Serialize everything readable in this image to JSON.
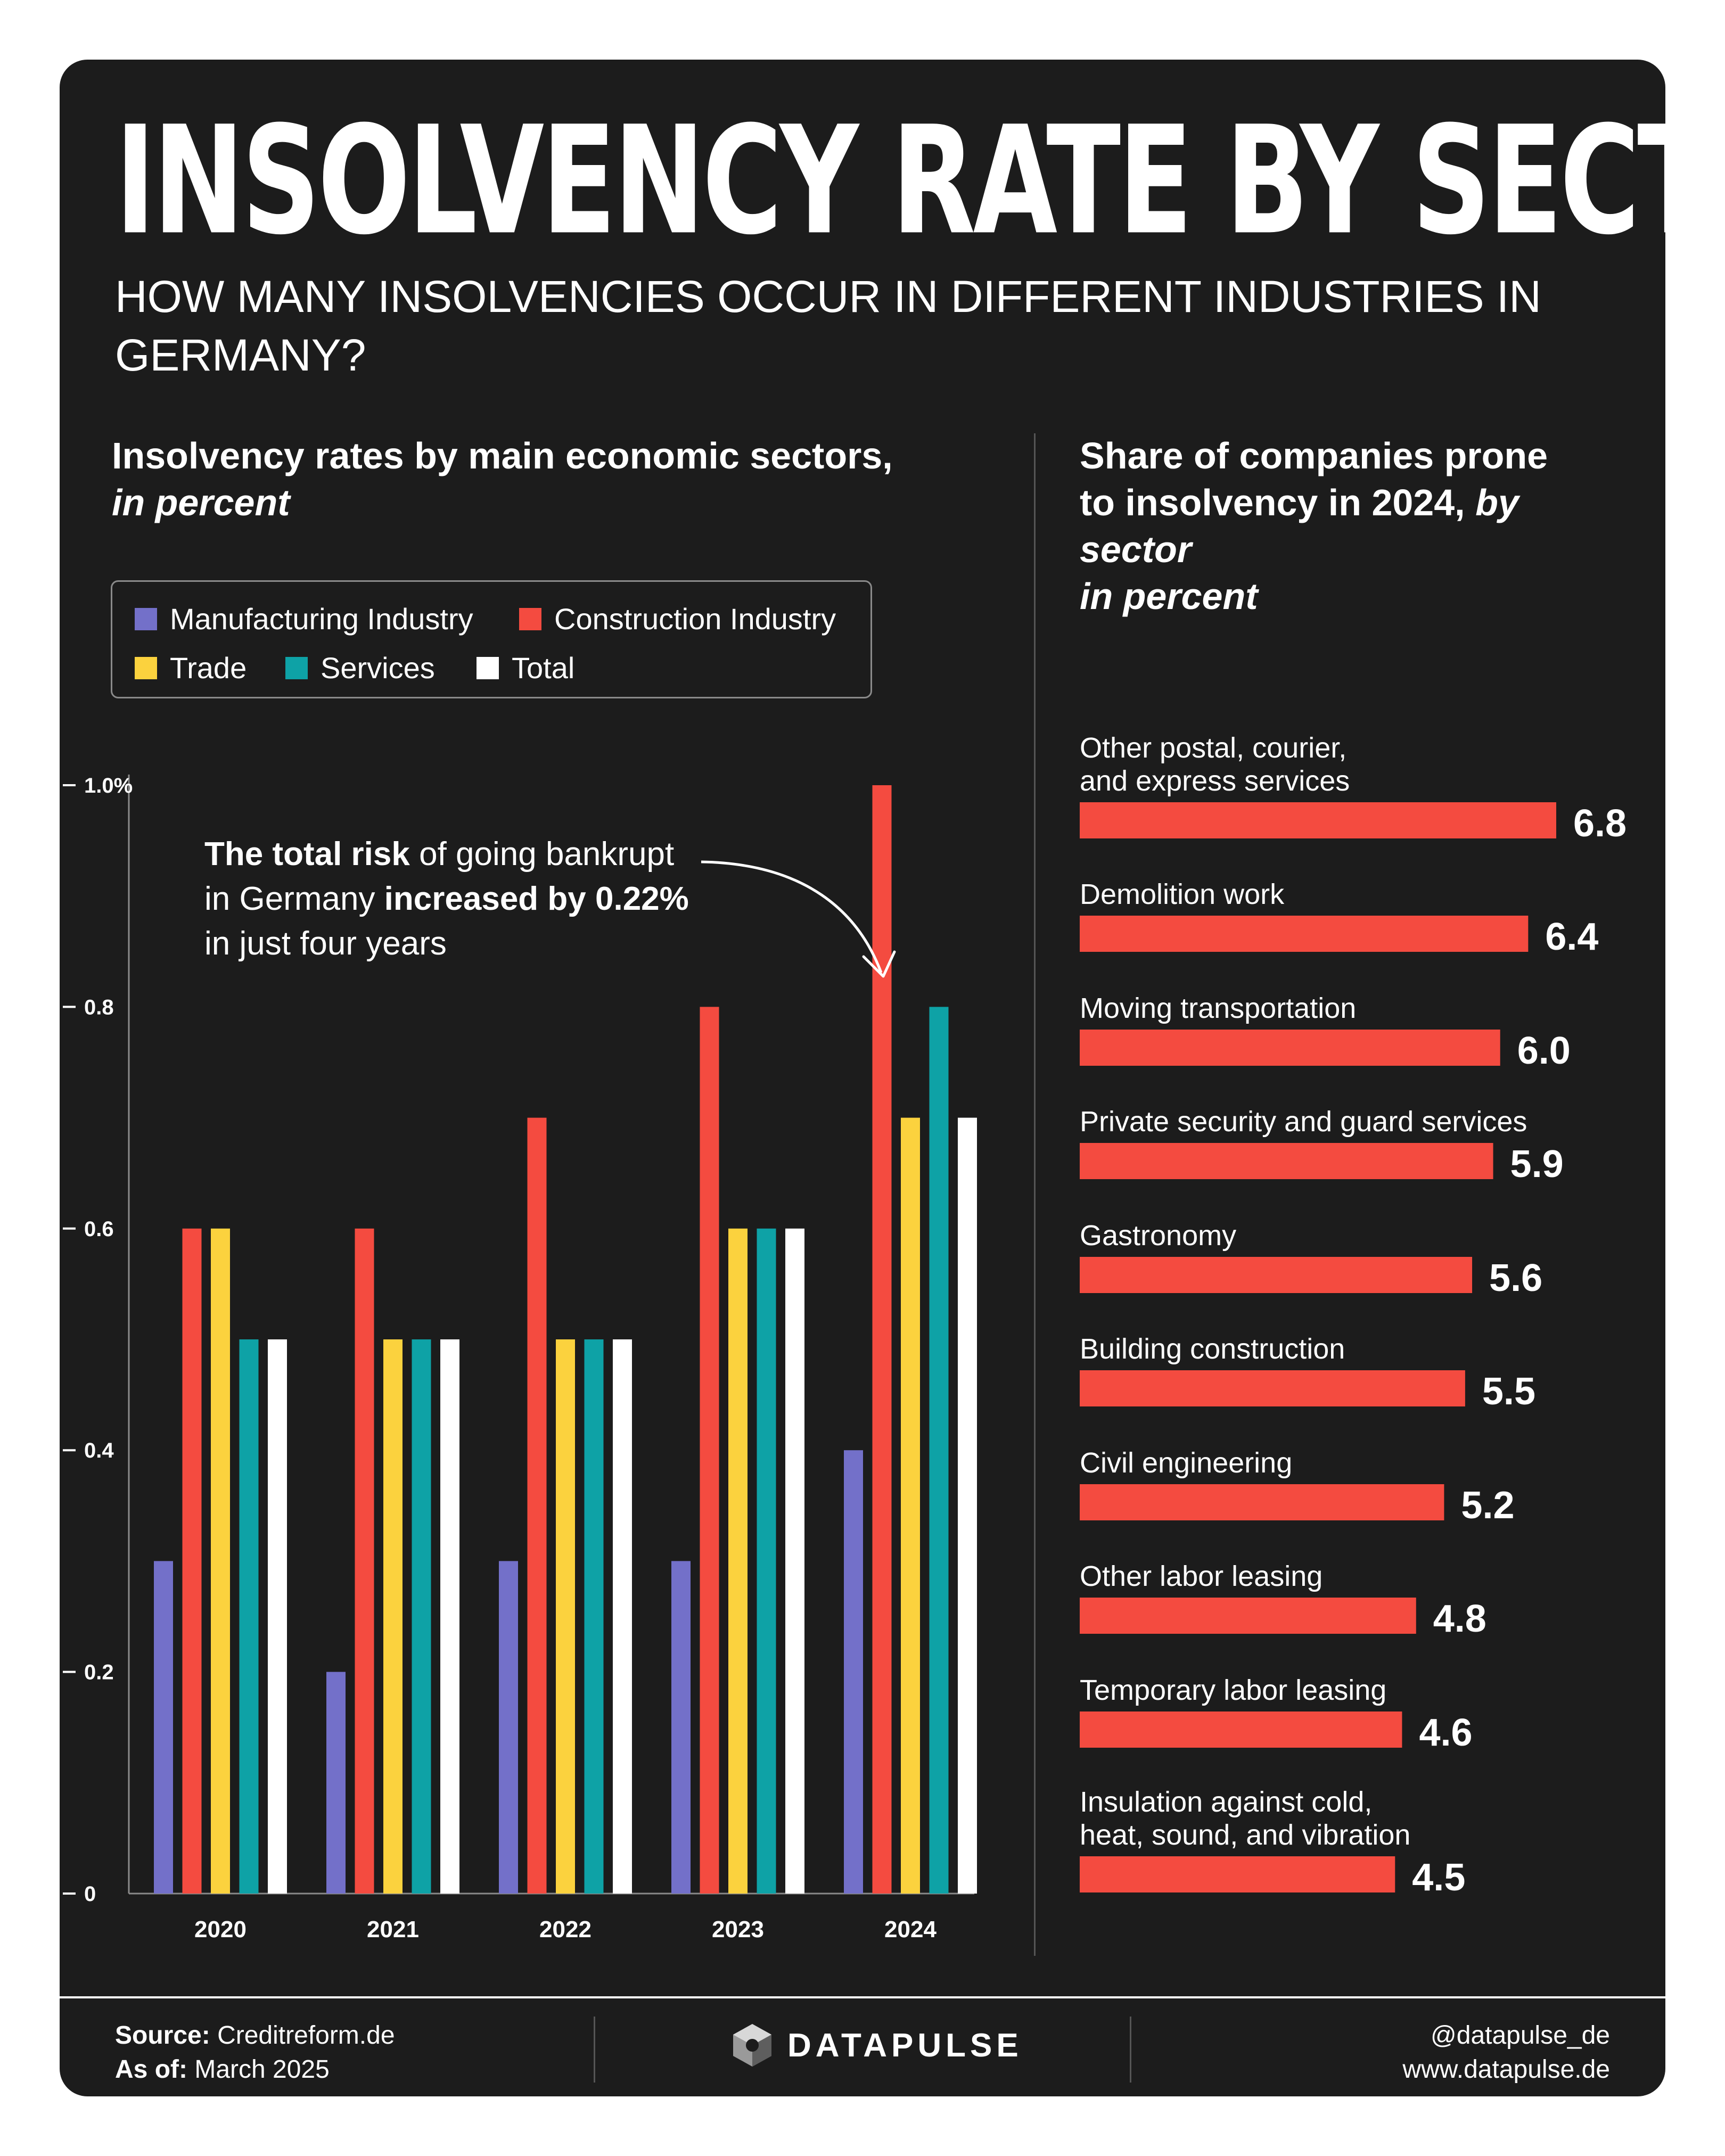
{
  "header": {
    "title": "INSOLVENCY RATE BY SECTOR",
    "subtitle": "HOW MANY INSOLVENCIES OCCUR IN DIFFERENT INDUSTRIES IN GERMANY?"
  },
  "left_panel": {
    "title_bold": "Insolvency rates by main economic sectors,",
    "title_italic": "in percent"
  },
  "right_panel": {
    "title_bold": "Share of companies prone to insolvency in 2024,",
    "title_italic_1": "by sector",
    "title_italic_2": "in percent"
  },
  "annotation": {
    "bold1": "The total risk",
    "text1": " of going bankrupt",
    "text2": "in Germany ",
    "bold2": "increased by 0.22%",
    "text3": "in just four years"
  },
  "colors": {
    "manufacturing": "#7370c9",
    "construction": "#f44b40",
    "trade": "#fbd23e",
    "services": "#0ea2a6",
    "total": "#ffffff",
    "background": "#1c1c1c"
  },
  "chart_data": [
    {
      "type": "bar",
      "categories": [
        "2020",
        "2021",
        "2022",
        "2023",
        "2024"
      ],
      "series": [
        {
          "name": "Manufacturing Industry",
          "values": [
            0.3,
            0.2,
            0.3,
            0.3,
            0.4
          ]
        },
        {
          "name": "Construction Industry",
          "values": [
            0.6,
            0.6,
            0.7,
            0.8,
            1.0
          ]
        },
        {
          "name": "Trade",
          "values": [
            0.6,
            0.5,
            0.5,
            0.6,
            0.7
          ]
        },
        {
          "name": "Services",
          "values": [
            0.5,
            0.5,
            0.5,
            0.6,
            0.8
          ]
        },
        {
          "name": "Total",
          "values": [
            0.5,
            0.5,
            0.5,
            0.6,
            0.7
          ]
        }
      ],
      "ylim": [
        0,
        1.0
      ],
      "y_ticks": [
        {
          "value": 0,
          "label": "0"
        },
        {
          "value": 0.2,
          "label": "0.2"
        },
        {
          "value": 0.4,
          "label": "0.4"
        },
        {
          "value": 0.6,
          "label": "0.6"
        },
        {
          "value": 0.8,
          "label": "0.8"
        },
        {
          "value": 1.0,
          "label": "1.0%"
        }
      ],
      "legend": "top-left",
      "grid": false
    },
    {
      "type": "bar",
      "orientation": "horizontal",
      "categories": [
        [
          "Other postal, courier,",
          "and express services"
        ],
        [
          "Demolition work"
        ],
        [
          "Moving transportation"
        ],
        [
          "Private security and guard services"
        ],
        [
          "Gastronomy"
        ],
        [
          "Building construction"
        ],
        [
          "Civil engineering"
        ],
        [
          "Other labor leasing"
        ],
        [
          "Temporary labor leasing"
        ],
        [
          "Insulation against cold,",
          "heat, sound, and vibration"
        ]
      ],
      "values": [
        6.8,
        6.4,
        6.0,
        5.9,
        5.6,
        5.5,
        5.2,
        4.8,
        4.6,
        4.5
      ],
      "value_labels": [
        "6.8",
        "6.4",
        "6.0",
        "5.9",
        "5.6",
        "5.5",
        "5.2",
        "4.8",
        "4.6",
        "4.5"
      ],
      "xlim": [
        0,
        6.8
      ]
    }
  ],
  "footer": {
    "source_label": "Source:",
    "source_value": "Creditreform.de",
    "asof_label": "As of:",
    "asof_value": "March 2025",
    "brand": "DATAPULSE",
    "handle": "@datapulse_de",
    "website": "www.datapulse.de"
  }
}
